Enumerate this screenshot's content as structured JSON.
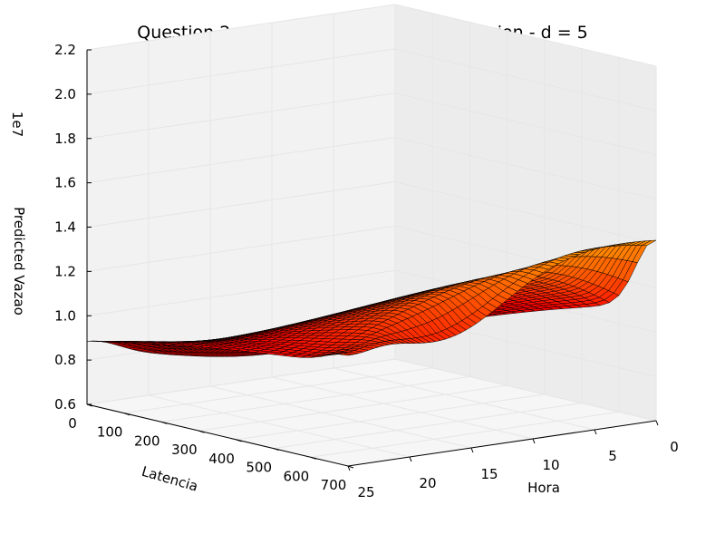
{
  "chart_data": {
    "type": "surface3d",
    "title": "Question 2 - Bivariate Polynomial Regression - d = 5",
    "xlabel": "Latencia",
    "ylabel": "Hora",
    "zlabel": "Predicted Vazao",
    "z_offset_label": "1e7",
    "x_ticks": [
      "0",
      "100",
      "200",
      "300",
      "400",
      "500",
      "600",
      "700"
    ],
    "y_ticks": [
      "25",
      "20",
      "15",
      "10",
      "5",
      "0"
    ],
    "z_ticks": [
      "0.6",
      "0.8",
      "1.0",
      "1.2",
      "1.4",
      "1.6",
      "1.8",
      "2.0",
      "2.2"
    ],
    "xlim": [
      0,
      700
    ],
    "ylim": [
      0,
      25
    ],
    "zlim_scaled": [
      0.6,
      2.2
    ],
    "colormap": "hot",
    "grid": true
  }
}
